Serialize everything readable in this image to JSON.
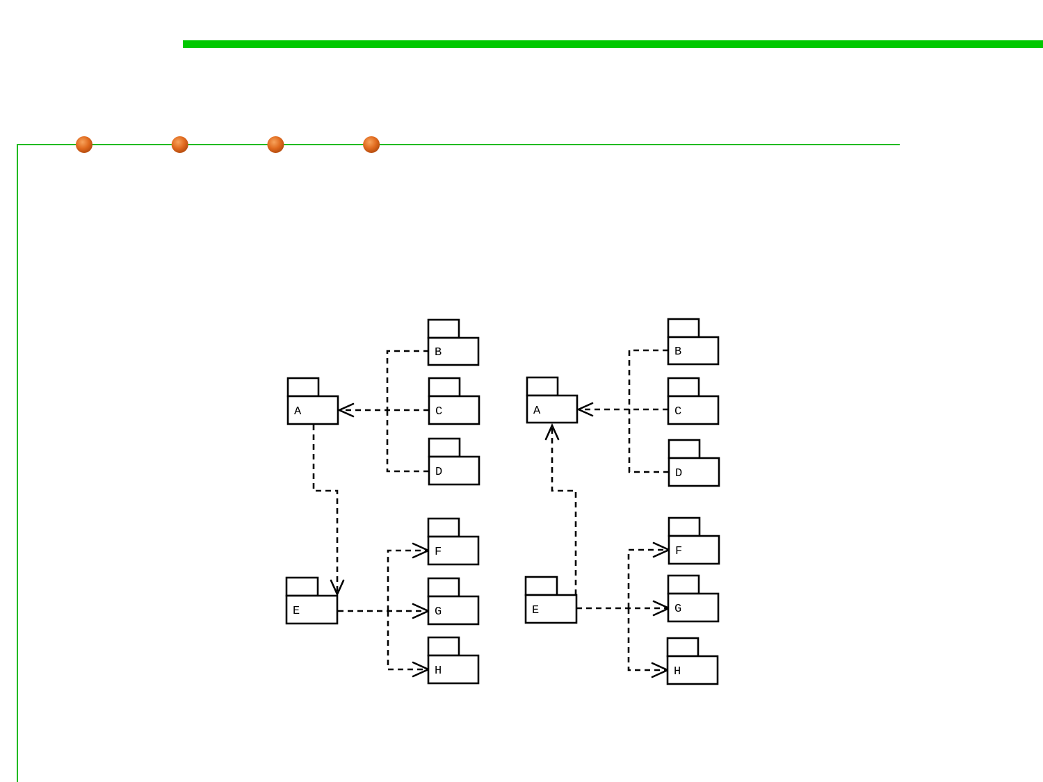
{
  "colors": {
    "accent_green": "#00c800",
    "frame_green": "#22bb22",
    "bullet_orange": "#e06a1e",
    "ink": "#000000"
  },
  "decor": {
    "bullet_count": 4
  },
  "diagrams": [
    {
      "packages": {
        "A": "A",
        "B": "B",
        "C": "C",
        "D": "D",
        "E": "E",
        "F": "F",
        "G": "G",
        "H": "H"
      },
      "dependencies": [
        [
          "B",
          "A"
        ],
        [
          "C",
          "A"
        ],
        [
          "D",
          "A"
        ],
        [
          "A",
          "E"
        ],
        [
          "E",
          "F"
        ],
        [
          "E",
          "G"
        ],
        [
          "E",
          "H"
        ]
      ]
    },
    {
      "packages": {
        "A": "A",
        "B": "B",
        "C": "C",
        "D": "D",
        "E": "E",
        "F": "F",
        "G": "G",
        "H": "H"
      },
      "dependencies": [
        [
          "B",
          "A"
        ],
        [
          "C",
          "A"
        ],
        [
          "D",
          "A"
        ],
        [
          "E",
          "A"
        ],
        [
          "E",
          "F"
        ],
        [
          "E",
          "G"
        ],
        [
          "E",
          "H"
        ]
      ]
    }
  ]
}
